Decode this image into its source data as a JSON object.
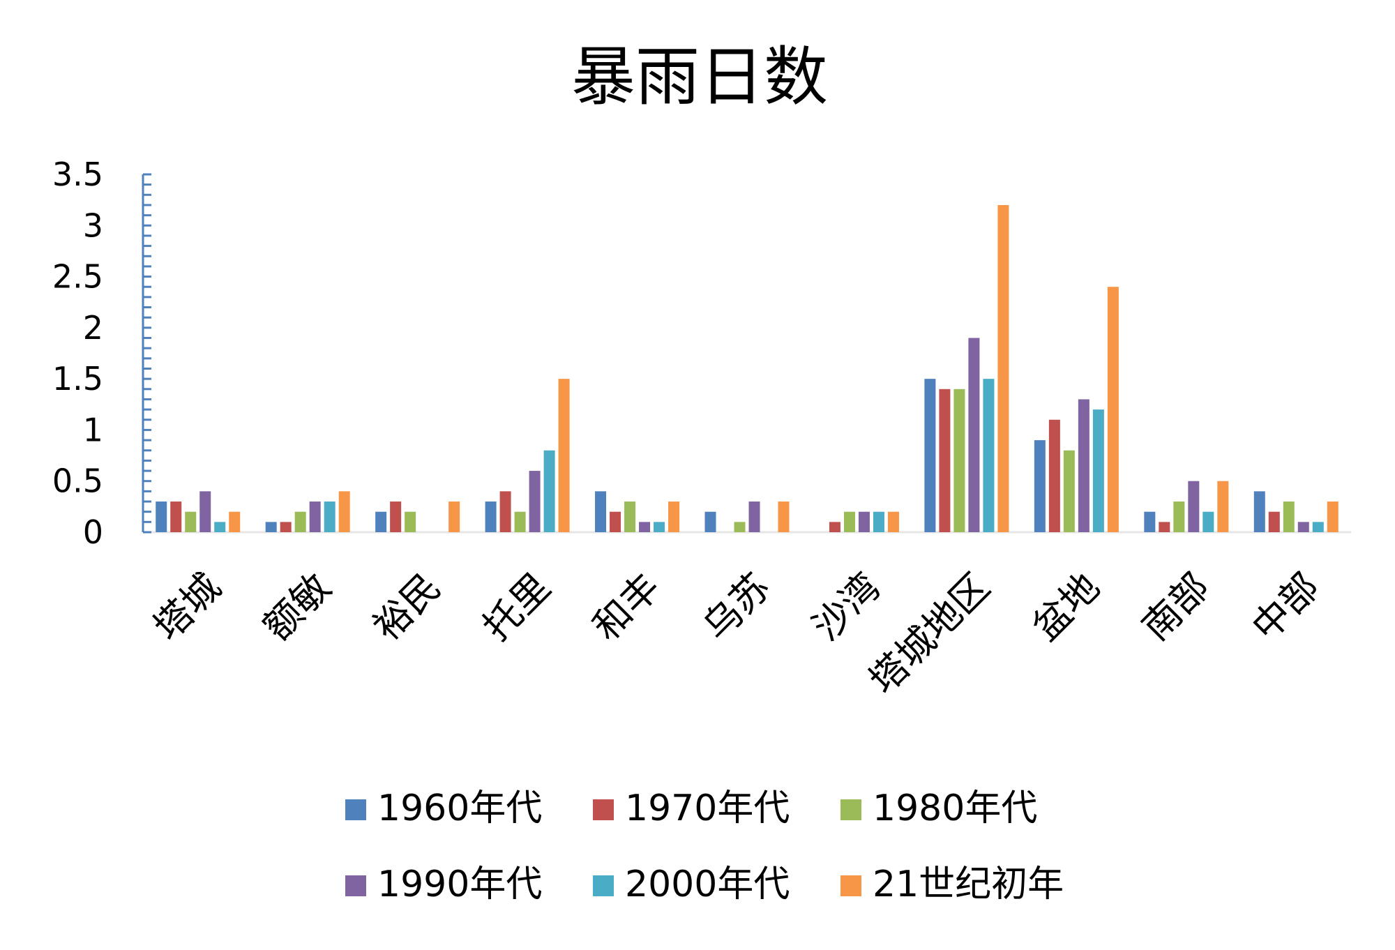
{
  "chart_data": {
    "type": "bar",
    "title": "暴雨日数",
    "xlabel": "",
    "ylabel": "",
    "ylim": [
      0,
      3.5
    ],
    "yticks": [
      "0",
      "0.5",
      "1",
      "1.5",
      "2",
      "2.5",
      "3",
      "3.5"
    ],
    "grid": false,
    "legend_position": "bottom",
    "categories": [
      "塔城",
      "额敏",
      "裕民",
      "托里",
      "和丰",
      "乌苏",
      "沙湾",
      "塔城地区",
      "盆地",
      "南部",
      "中部"
    ],
    "series": [
      {
        "name": "1960年代",
        "color": "#4F81BD",
        "values": [
          0.3,
          0.1,
          0.2,
          0.3,
          0.4,
          0.2,
          0,
          1.5,
          0.9,
          0.2,
          0.4
        ]
      },
      {
        "name": "1970年代",
        "color": "#C0504D",
        "values": [
          0.3,
          0.1,
          0.3,
          0.4,
          0.2,
          0,
          0.1,
          1.4,
          1.1,
          0.1,
          0.2
        ]
      },
      {
        "name": "1980年代",
        "color": "#9BBB59",
        "values": [
          0.2,
          0.2,
          0.2,
          0.2,
          0.3,
          0.1,
          0.2,
          1.4,
          0.8,
          0.3,
          0.3
        ]
      },
      {
        "name": "1990年代",
        "color": "#8064A2",
        "values": [
          0.4,
          0.3,
          0,
          0.6,
          0.1,
          0.3,
          0.2,
          1.9,
          1.3,
          0.5,
          0.1
        ]
      },
      {
        "name": "2000年代",
        "color": "#4BACC6",
        "values": [
          0.1,
          0.3,
          0,
          0.8,
          0.1,
          0,
          0.2,
          1.5,
          1.2,
          0.2,
          0.1
        ]
      },
      {
        "name": "21世纪初年",
        "color": "#F79646",
        "values": [
          0.2,
          0.4,
          0.3,
          1.5,
          0.3,
          0.3,
          0.2,
          3.2,
          2.4,
          0.5,
          0.3
        ]
      }
    ]
  }
}
